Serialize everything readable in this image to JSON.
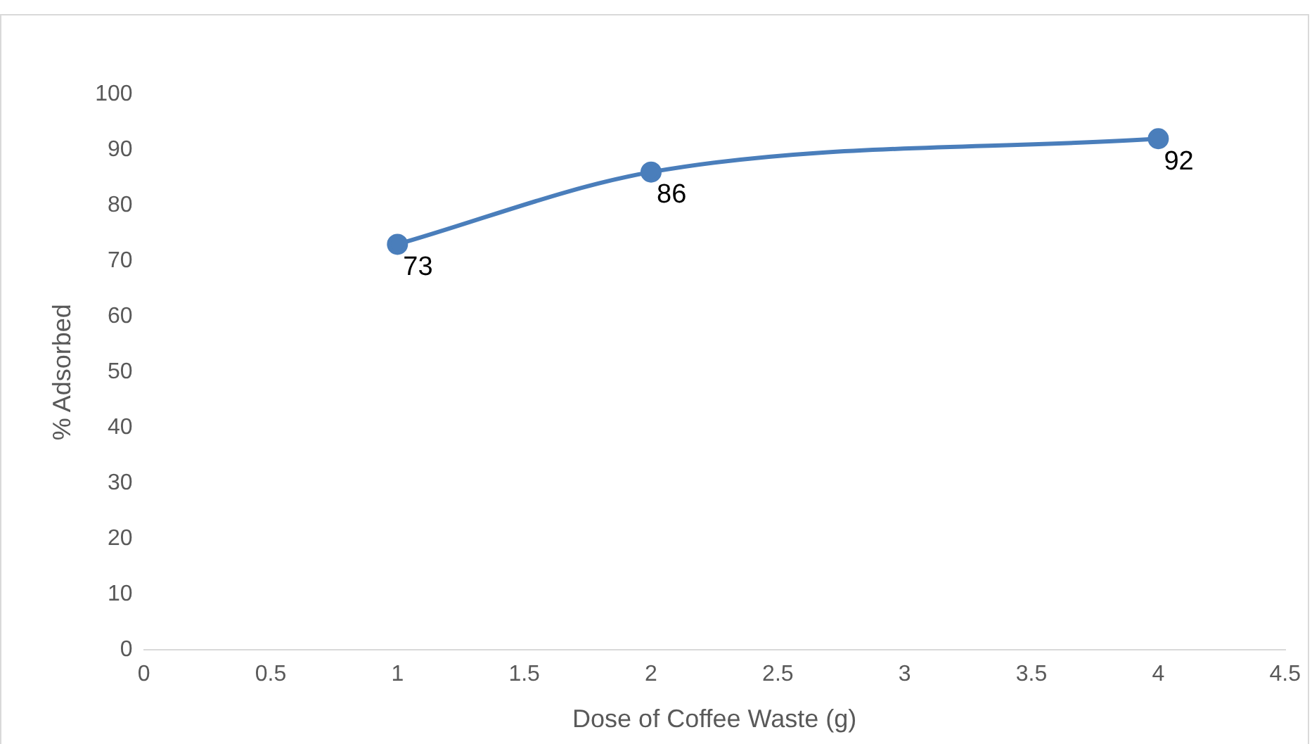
{
  "chart_data": {
    "type": "line",
    "xlabel": "Dose of Coffee Waste (g)",
    "ylabel": "% Adsorbed",
    "x": [
      1,
      2,
      4
    ],
    "series": [
      {
        "color": "#4a7ebb",
        "values": [
          73,
          86,
          92
        ]
      }
    ],
    "xlim": [
      0,
      4.5
    ],
    "xticks": [
      0,
      0.5,
      1,
      1.5,
      2,
      2.5,
      3,
      3.5,
      4,
      4.5
    ],
    "ylim": [
      0,
      100
    ],
    "yticks": [
      0,
      10,
      20,
      30,
      40,
      50,
      60,
      70,
      80,
      90,
      100
    ],
    "data_labels": true,
    "grid": false,
    "legend": false,
    "marker": "circle",
    "line_style": "solid"
  }
}
